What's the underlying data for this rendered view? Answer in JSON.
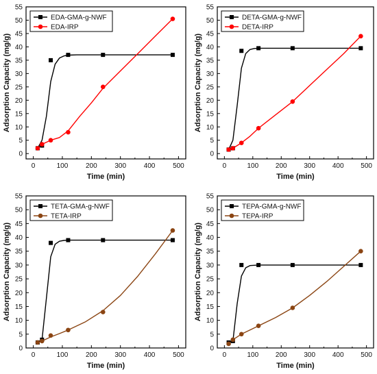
{
  "chart_data": [
    {
      "type": "scatter",
      "xlabel": "Time (min)",
      "ylabel": "Adsorption Capacity (mg/g)",
      "xlim": [
        -25,
        525
      ],
      "ylim": [
        -2,
        55
      ],
      "xticks": [
        "0",
        "100",
        "200",
        "300",
        "400",
        "500"
      ],
      "yticks": [
        "0",
        "5",
        "10",
        "15",
        "20",
        "25",
        "30",
        "35",
        "40",
        "45",
        "50",
        "55"
      ],
      "legend_position": "top-left",
      "series": [
        {
          "name": "EDA-GMA-g-NWF",
          "color": "#000000",
          "marker": "square",
          "x": [
            15,
            30,
            60,
            120,
            240,
            480
          ],
          "y": [
            2,
            3,
            35,
            37,
            37,
            37
          ],
          "fit": [
            [
              15,
              2
            ],
            [
              30,
              5
            ],
            [
              45,
              14
            ],
            [
              60,
              27
            ],
            [
              75,
              33.5
            ],
            [
              90,
              35.8
            ],
            [
              105,
              36.6
            ],
            [
              120,
              36.9
            ],
            [
              150,
              37
            ],
            [
              200,
              37
            ],
            [
              300,
              37
            ],
            [
              480,
              37
            ]
          ]
        },
        {
          "name": "EDA-IRP",
          "color": "#ff0000",
          "marker": "circle",
          "x": [
            15,
            30,
            60,
            120,
            240,
            480
          ],
          "y": [
            2,
            3.5,
            5,
            8,
            25,
            50.5
          ],
          "fit": [
            [
              15,
              2
            ],
            [
              30,
              3.5
            ],
            [
              60,
              5
            ],
            [
              90,
              6
            ],
            [
              120,
              8.5
            ],
            [
              160,
              14
            ],
            [
              200,
              19
            ],
            [
              240,
              24.5
            ],
            [
              300,
              31
            ],
            [
              360,
              37.5
            ],
            [
              420,
              44
            ],
            [
              480,
              50.5
            ]
          ]
        }
      ]
    },
    {
      "type": "scatter",
      "xlabel": "Time (min)",
      "ylabel": "Adsorption Capacity (mg/g)",
      "xlim": [
        -25,
        525
      ],
      "ylim": [
        -2,
        55
      ],
      "xticks": [
        "0",
        "100",
        "200",
        "300",
        "400",
        "500"
      ],
      "yticks": [
        "0",
        "5",
        "10",
        "15",
        "20",
        "25",
        "30",
        "35",
        "40",
        "45",
        "50",
        "55"
      ],
      "legend_position": "top-left",
      "series": [
        {
          "name": "DETA-GMA-g-NWF",
          "color": "#000000",
          "marker": "square",
          "x": [
            15,
            30,
            60,
            120,
            240,
            480
          ],
          "y": [
            1.5,
            2,
            38.5,
            39.5,
            39.5,
            39.5
          ],
          "fit": [
            [
              15,
              1.5
            ],
            [
              30,
              5
            ],
            [
              45,
              18
            ],
            [
              60,
              32
            ],
            [
              75,
              37.5
            ],
            [
              90,
              39
            ],
            [
              105,
              39.4
            ],
            [
              120,
              39.5
            ],
            [
              200,
              39.5
            ],
            [
              300,
              39.5
            ],
            [
              480,
              39.5
            ]
          ]
        },
        {
          "name": "DETA-IRP",
          "color": "#ff0000",
          "marker": "circle",
          "x": [
            15,
            30,
            60,
            120,
            240,
            480
          ],
          "y": [
            1.5,
            2,
            4,
            9.5,
            19.5,
            44
          ],
          "fit": [
            [
              15,
              1.5
            ],
            [
              30,
              2
            ],
            [
              60,
              4
            ],
            [
              90,
              6.5
            ],
            [
              120,
              9.5
            ],
            [
              180,
              14.5
            ],
            [
              240,
              19.5
            ],
            [
              300,
              25.5
            ],
            [
              360,
              31.5
            ],
            [
              420,
              37.5
            ],
            [
              480,
              44
            ]
          ]
        }
      ]
    },
    {
      "type": "scatter",
      "xlabel": "Time (min)",
      "ylabel": "Adsorption Capacity (mg/g)",
      "xlim": [
        -25,
        525
      ],
      "ylim": [
        0,
        55
      ],
      "xticks": [
        "0",
        "100",
        "200",
        "300",
        "400",
        "500"
      ],
      "yticks": [
        "0",
        "5",
        "10",
        "15",
        "20",
        "25",
        "30",
        "35",
        "40",
        "45",
        "50",
        "55"
      ],
      "legend_position": "top-left",
      "series": [
        {
          "name": "TETA-GMA-g-NWF",
          "color": "#000000",
          "marker": "square",
          "x": [
            15,
            30,
            60,
            120,
            240,
            480
          ],
          "y": [
            2,
            3,
            38,
            39,
            39,
            39
          ],
          "fit": [
            [
              15,
              2
            ],
            [
              30,
              3
            ],
            [
              45,
              18
            ],
            [
              60,
              33
            ],
            [
              75,
              37.5
            ],
            [
              90,
              38.6
            ],
            [
              105,
              38.9
            ],
            [
              120,
              39
            ],
            [
              200,
              39
            ],
            [
              300,
              39
            ],
            [
              480,
              39
            ]
          ]
        },
        {
          "name": "TETA-IRP",
          "color": "#8b4513",
          "marker": "circle",
          "x": [
            15,
            30,
            60,
            120,
            240,
            480
          ],
          "y": [
            2,
            2.5,
            4.5,
            6.5,
            13,
            42.5
          ],
          "fit": [
            [
              15,
              2
            ],
            [
              30,
              2.5
            ],
            [
              60,
              4
            ],
            [
              90,
              5.2
            ],
            [
              120,
              6.5
            ],
            [
              180,
              9.5
            ],
            [
              240,
              13.5
            ],
            [
              300,
              19
            ],
            [
              360,
              26
            ],
            [
              420,
              34
            ],
            [
              480,
              42.5
            ]
          ]
        }
      ]
    },
    {
      "type": "scatter",
      "xlabel": "Time (min)",
      "ylabel": "Adsorption Capacity (mg/g)",
      "xlim": [
        -25,
        525
      ],
      "ylim": [
        0,
        55
      ],
      "xticks": [
        "0",
        "100",
        "200",
        "300",
        "400",
        "500"
      ],
      "yticks": [
        "0",
        "5",
        "10",
        "15",
        "20",
        "25",
        "30",
        "35",
        "40",
        "45",
        "50",
        "55"
      ],
      "legend_position": "top-left",
      "series": [
        {
          "name": "TEPA-GMA-g-NWF",
          "color": "#000000",
          "marker": "square",
          "x": [
            15,
            30,
            60,
            120,
            240,
            480
          ],
          "y": [
            2,
            2.5,
            30,
            30,
            30,
            30
          ],
          "fit": [
            [
              15,
              2
            ],
            [
              30,
              2.5
            ],
            [
              45,
              16
            ],
            [
              60,
              26
            ],
            [
              75,
              29
            ],
            [
              90,
              29.8
            ],
            [
              120,
              30
            ],
            [
              200,
              30
            ],
            [
              300,
              30
            ],
            [
              480,
              30
            ]
          ]
        },
        {
          "name": "TEPA-IRP",
          "color": "#8b4513",
          "marker": "circle",
          "x": [
            15,
            30,
            60,
            120,
            240,
            480
          ],
          "y": [
            1.5,
            3,
            5,
            8,
            14.5,
            35
          ],
          "fit": [
            [
              15,
              1.5
            ],
            [
              30,
              3
            ],
            [
              60,
              5
            ],
            [
              90,
              6.5
            ],
            [
              120,
              8
            ],
            [
              180,
              11
            ],
            [
              240,
              14.5
            ],
            [
              300,
              19
            ],
            [
              360,
              24
            ],
            [
              420,
              29.5
            ],
            [
              480,
              35
            ]
          ]
        }
      ]
    }
  ]
}
